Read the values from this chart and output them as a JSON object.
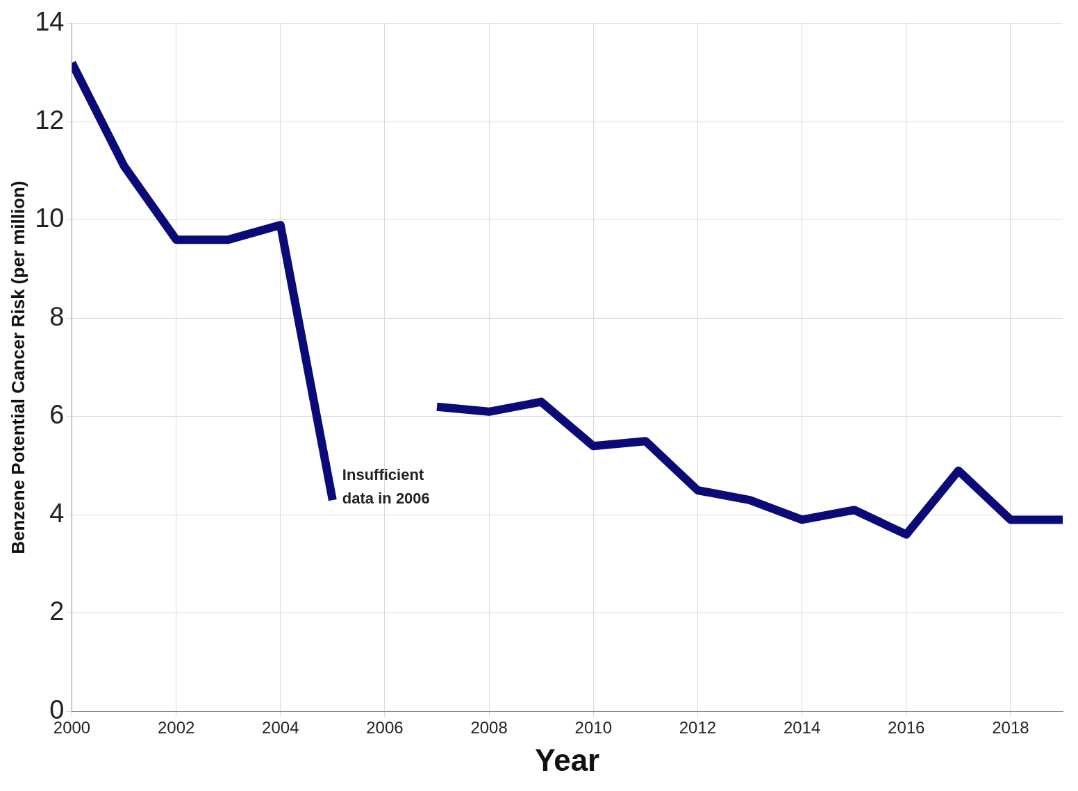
{
  "chart_data": {
    "type": "line",
    "xlabel": "Year",
    "ylabel": "Benzene Potential Cancer Risk (per million)",
    "x": [
      2000,
      2001,
      2002,
      2003,
      2004,
      2005,
      2006,
      2007,
      2008,
      2009,
      2010,
      2011,
      2012,
      2013,
      2014,
      2015,
      2016,
      2017,
      2018,
      2019
    ],
    "series": [
      {
        "color": "#0a0a78",
        "values": [
          13.2,
          11.1,
          9.6,
          9.6,
          9.9,
          4.3,
          null,
          6.2,
          6.1,
          6.3,
          5.4,
          5.5,
          4.5,
          4.3,
          3.9,
          4.1,
          3.6,
          4.9,
          3.9,
          3.9
        ]
      }
    ],
    "xlim": [
      2000,
      2019
    ],
    "xticks": [
      2000,
      2002,
      2004,
      2006,
      2008,
      2010,
      2012,
      2014,
      2016,
      2018
    ],
    "ylim": [
      0,
      14
    ],
    "yticks": [
      0,
      2,
      4,
      6,
      8,
      10,
      12,
      14
    ],
    "grid": true,
    "legend": false,
    "marker": "none",
    "line_style": "solid",
    "annotations": [
      "Insufficient\ndata in 2006"
    ]
  }
}
